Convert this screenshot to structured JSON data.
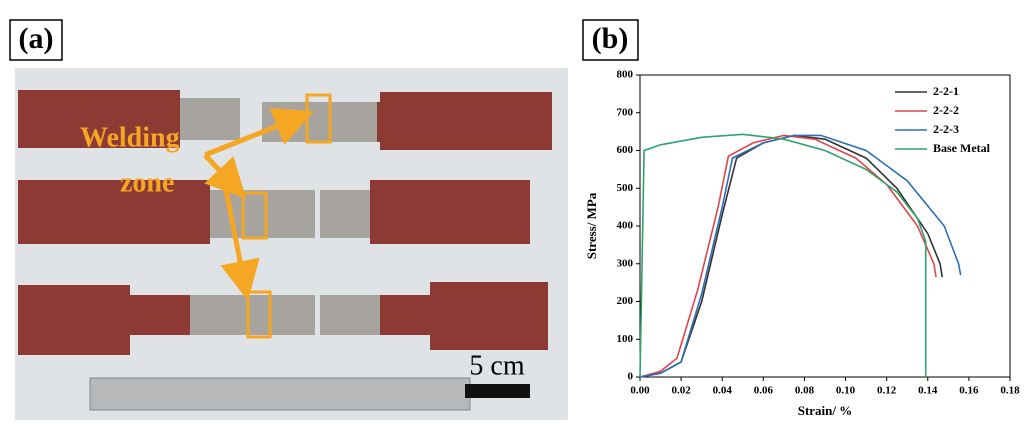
{
  "panel_a": {
    "label": "(a)",
    "annotation": [
      "Welding",
      "zone"
    ],
    "scale_bar": "5 cm"
  },
  "chart_data": {
    "type": "line",
    "panel_label": "(b)",
    "xlabel": "Strain/ %",
    "ylabel": "Stress/ MPa",
    "xlim": [
      0,
      0.18
    ],
    "ylim": [
      0,
      800
    ],
    "xticks": [
      {
        "value": 0,
        "label": "0.00"
      },
      {
        "value": 0.02,
        "label": "0.02"
      },
      {
        "value": 0.04,
        "label": "0.04"
      },
      {
        "value": 0.06,
        "label": "0.06"
      },
      {
        "value": 0.08,
        "label": "0.08"
      },
      {
        "value": 0.1,
        "label": "0.10"
      },
      {
        "value": 0.12,
        "label": "0.12"
      },
      {
        "value": 0.14,
        "label": "0.14"
      },
      {
        "value": 0.16,
        "label": "0.16"
      },
      {
        "value": 0.18,
        "label": "0.18"
      }
    ],
    "yticks": [
      0,
      100,
      200,
      300,
      400,
      500,
      600,
      700,
      800
    ],
    "legend": "upper right",
    "series": [
      {
        "name": "2-2-1",
        "color": "#333333",
        "x": [
          0,
          0.01,
          0.02,
          0.03,
          0.04,
          0.047,
          0.06,
          0.075,
          0.09,
          0.11,
          0.125,
          0.14,
          0.146,
          0.147
        ],
        "values": [
          0,
          10,
          40,
          200,
          430,
          580,
          620,
          640,
          630,
          580,
          500,
          380,
          300,
          265
        ]
      },
      {
        "name": "2-2-2",
        "color": "#e0454a",
        "x": [
          0,
          0.01,
          0.018,
          0.028,
          0.038,
          0.043,
          0.055,
          0.07,
          0.085,
          0.105,
          0.12,
          0.135,
          0.143,
          0.144
        ],
        "values": [
          0,
          15,
          50,
          230,
          450,
          585,
          620,
          640,
          630,
          580,
          510,
          400,
          300,
          265
        ]
      },
      {
        "name": "2-2-3",
        "color": "#2e6eb5",
        "x": [
          0,
          0.01,
          0.02,
          0.03,
          0.04,
          0.045,
          0.06,
          0.075,
          0.088,
          0.11,
          0.13,
          0.148,
          0.155,
          0.156
        ],
        "values": [
          0,
          10,
          40,
          220,
          450,
          580,
          620,
          640,
          640,
          600,
          520,
          400,
          300,
          270
        ]
      },
      {
        "name": "Base Metal",
        "color": "#2ea36a",
        "x": [
          0,
          0.002,
          0.01,
          0.03,
          0.05,
          0.07,
          0.09,
          0.11,
          0.125,
          0.135,
          0.139,
          0.139
        ],
        "values": [
          0,
          600,
          615,
          635,
          643,
          630,
          600,
          550,
          490,
          420,
          360,
          0
        ]
      }
    ]
  }
}
